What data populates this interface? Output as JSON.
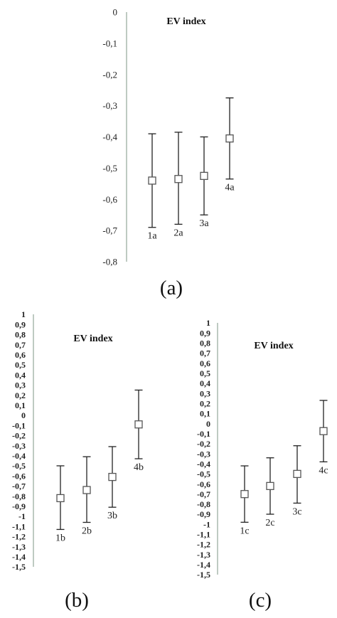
{
  "chart_data": [
    {
      "type": "scatter",
      "panel_label": "(a)",
      "title": "EV index",
      "ylim": [
        -0.8,
        0
      ],
      "yticks": [
        "0",
        "-0,1",
        "-0,2",
        "-0,3",
        "-0,4",
        "-0,5",
        "-0,6",
        "-0,7",
        "-0,8"
      ],
      "points": [
        {
          "label": "1a",
          "value": -0.54,
          "low": -0.69,
          "high": -0.39
        },
        {
          "label": "2a",
          "value": -0.535,
          "low": -0.68,
          "high": -0.385
        },
        {
          "label": "3a",
          "value": -0.525,
          "low": -0.65,
          "high": -0.4
        },
        {
          "label": "4a",
          "value": -0.405,
          "low": -0.535,
          "high": -0.275
        }
      ]
    },
    {
      "type": "scatter",
      "panel_label": "(b)",
      "title": "EV index",
      "ylim": [
        -1.5,
        1
      ],
      "yticks": [
        "1",
        "0,9",
        "0,8",
        "0,7",
        "0,6",
        "0,5",
        "0,4",
        "0,3",
        "0,2",
        "0,1",
        "0",
        "-0,1",
        "-0,2",
        "-0,3",
        "-0,4",
        "-0,5",
        "-0,6",
        "-0,7",
        "-0,8",
        "-0,9",
        "-1",
        "-1,1",
        "-1,2",
        "-1,3",
        "-1,4",
        "-1,5"
      ],
      "points": [
        {
          "label": "1b",
          "value": -0.82,
          "low": -1.13,
          "high": -0.5
        },
        {
          "label": "2b",
          "value": -0.74,
          "low": -1.06,
          "high": -0.41
        },
        {
          "label": "3b",
          "value": -0.61,
          "low": -0.91,
          "high": -0.31
        },
        {
          "label": "4b",
          "value": -0.09,
          "low": -0.43,
          "high": 0.25
        }
      ]
    },
    {
      "type": "scatter",
      "panel_label": "(c)",
      "title": "EV index",
      "ylim": [
        -1.5,
        1
      ],
      "yticks": [
        "1",
        "0,9",
        "0,8",
        "0,7",
        "0,6",
        "0,5",
        "0,4",
        "0,3",
        "0,2",
        "0,1",
        "0",
        "-0,1",
        "-0,2",
        "-0,3",
        "-0,4",
        "-0,5",
        "-0,6",
        "-0,7",
        "-0,8",
        "-0,9",
        "-1",
        "-1,1",
        "-1,2",
        "-1,3",
        "-1,4",
        "-1,5"
      ],
      "points": [
        {
          "label": "1c",
          "value": -0.7,
          "low": -0.98,
          "high": -0.42
        },
        {
          "label": "2c",
          "value": -0.62,
          "low": -0.9,
          "high": -0.34
        },
        {
          "label": "3c",
          "value": -0.5,
          "low": -0.79,
          "high": -0.22
        },
        {
          "label": "4c",
          "value": -0.075,
          "low": -0.38,
          "high": 0.23
        }
      ]
    }
  ],
  "colors": {
    "axis": "#a9b8ad",
    "errorbar": "#222222",
    "marker_fill": "#ffffff",
    "marker_stroke": "#555555"
  }
}
